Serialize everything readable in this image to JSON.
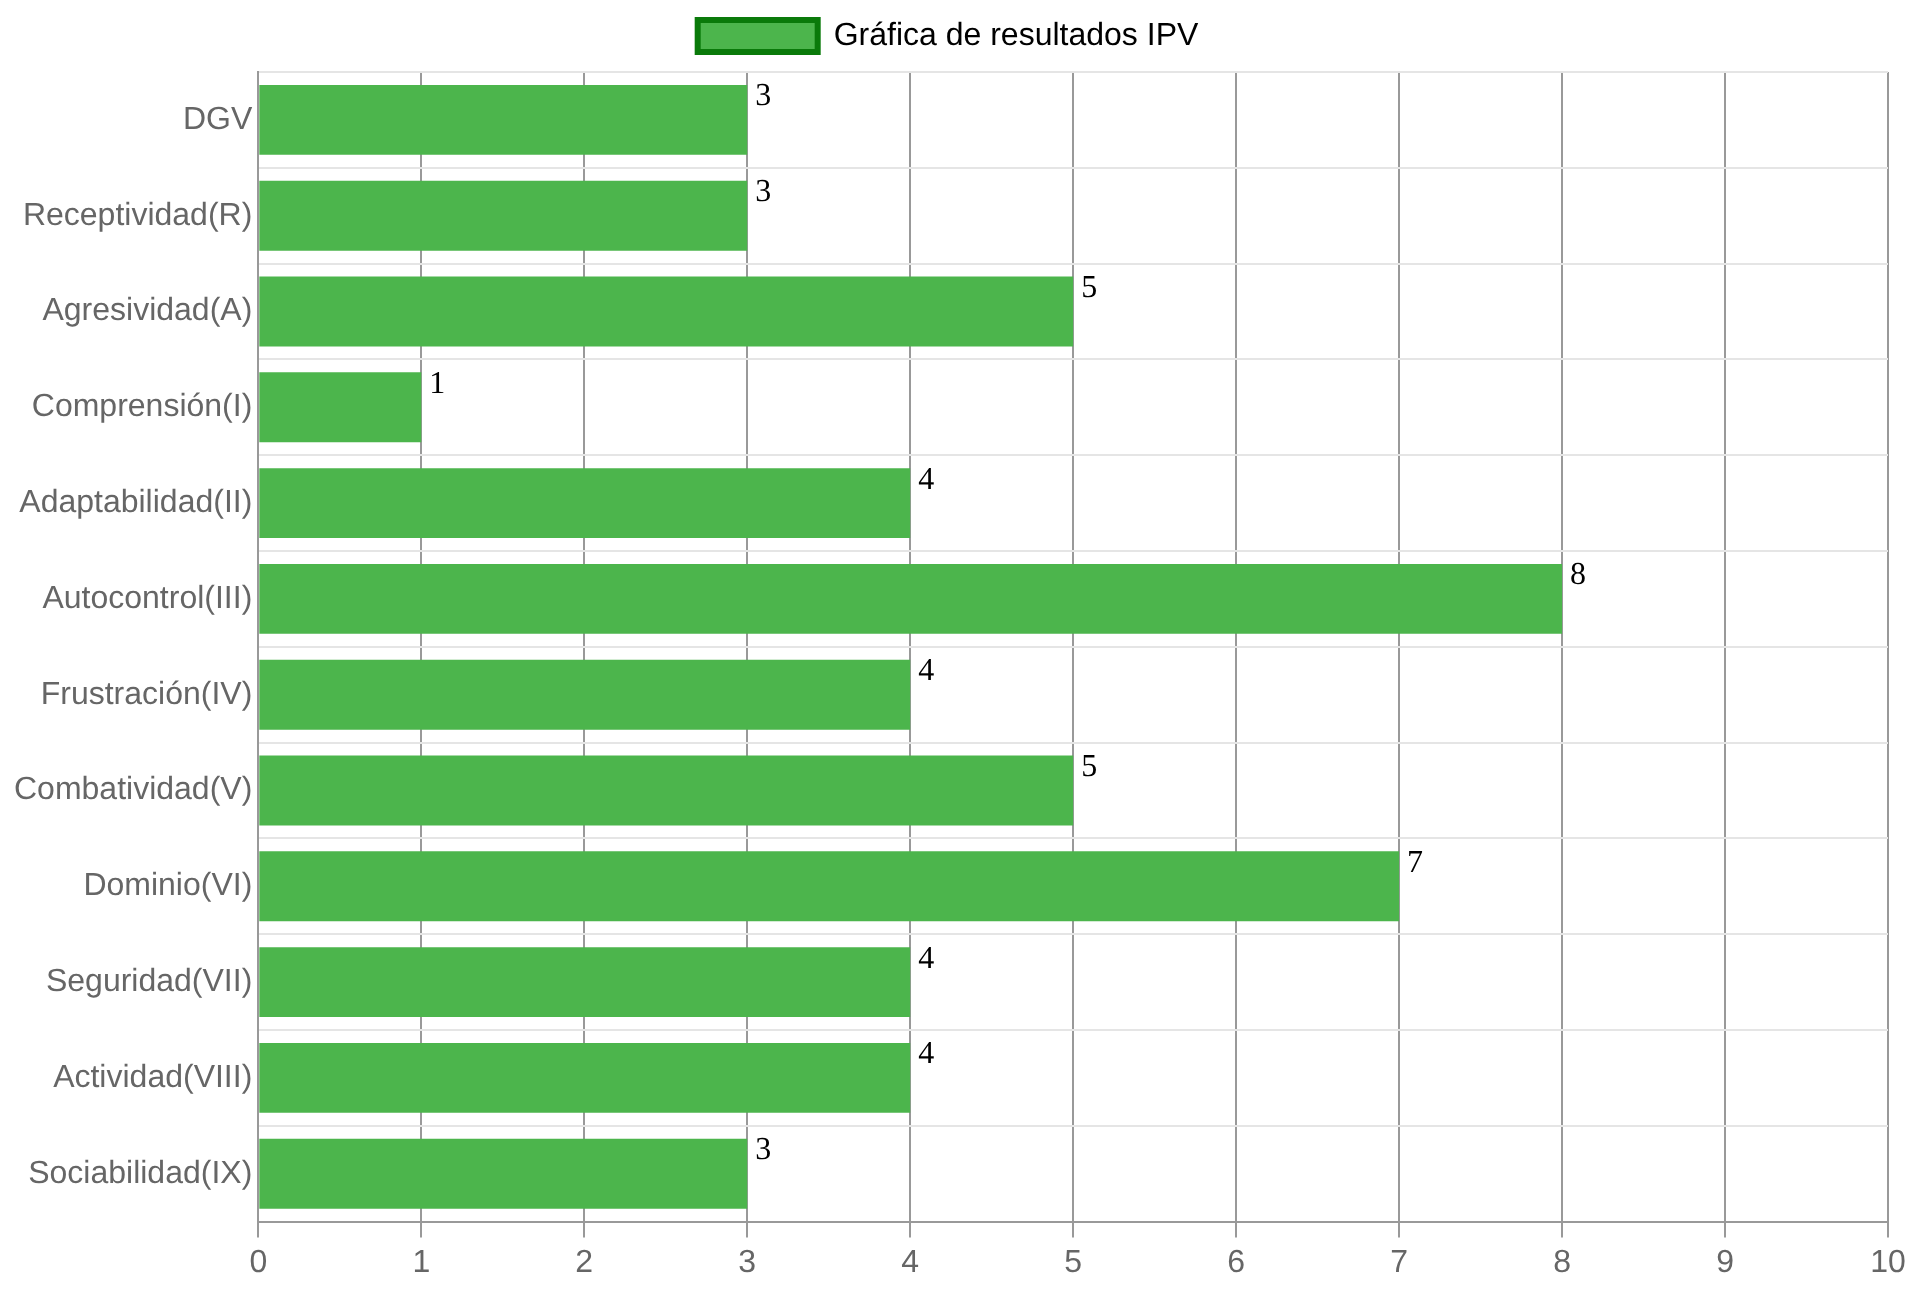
{
  "chart_data": {
    "type": "bar",
    "orientation": "horizontal",
    "categories": [
      "DGV",
      "Receptividad(R)",
      "Agresividad(A)",
      "Comprensión(I)",
      "Adaptabilidad(II)",
      "Autocontrol(III)",
      "Frustración(IV)",
      "Combatividad(V)",
      "Dominio(VI)",
      "Seguridad(VII)",
      "Actividad(VIII)",
      "Sociabilidad(IX)"
    ],
    "series": [
      {
        "name": "Gráfica de resultados IPV",
        "color": "#4cb54c",
        "values": [
          3,
          3,
          5,
          1,
          4,
          8,
          4,
          5,
          7,
          4,
          4,
          3
        ]
      }
    ],
    "xlim": [
      0,
      10
    ],
    "xticks": [
      0,
      1,
      2,
      3,
      4,
      5,
      6,
      7,
      8,
      9,
      10
    ],
    "grid": true,
    "legend": "top",
    "data_labels": true
  }
}
